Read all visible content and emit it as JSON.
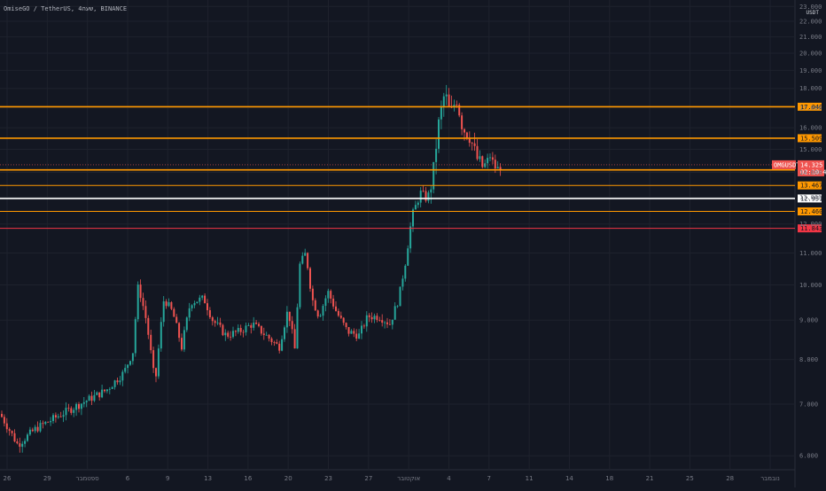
{
  "header": {
    "symbol_title": "OmiseGO / TetherUS, 4שעה, BINANCE",
    "unit": "USDT"
  },
  "colors": {
    "background": "#131722",
    "grid": "#1e222d",
    "up": "#26a69a",
    "down": "#ef5350",
    "orange": "#ff9800",
    "white": "#ffffff",
    "red_line": "#f23645",
    "axis_text": "#787b86"
  },
  "chart_data": {
    "type": "candlestick",
    "y_axis": {
      "scale": "log",
      "range": [
        5.8,
        23.2
      ],
      "ticks": [
        "23.000",
        "22.000",
        "21.000",
        "20.000",
        "19.000",
        "18.000",
        "17.000",
        "16.000",
        "15.000",
        "14.000",
        "13.000",
        "12.000",
        "11.000",
        "10.000",
        "9.000",
        "8.000",
        "7.000",
        "6.000"
      ]
    },
    "x_axis": {
      "ticks": [
        "26",
        "29",
        "ספטמבר",
        "6",
        "9",
        "13",
        "16",
        "20",
        "23",
        "27",
        "אוקטובר",
        "4",
        "7",
        "11",
        "14",
        "18",
        "21",
        "25",
        "28",
        "נובמבר"
      ]
    },
    "grid": true,
    "path_keypoints": [
      [
        0,
        6.8
      ],
      [
        20,
        6.2
      ],
      [
        40,
        6.5
      ],
      [
        60,
        6.7
      ],
      [
        80,
        6.9
      ],
      [
        100,
        7.1
      ],
      [
        120,
        7.3
      ],
      [
        140,
        7.7
      ],
      [
        150,
        8.2
      ],
      [
        156,
        10.0
      ],
      [
        165,
        9.0
      ],
      [
        175,
        7.4
      ],
      [
        185,
        9.6
      ],
      [
        195,
        9.2
      ],
      [
        205,
        8.3
      ],
      [
        215,
        9.5
      ],
      [
        230,
        9.6
      ],
      [
        240,
        9.0
      ],
      [
        255,
        8.6
      ],
      [
        270,
        8.7
      ],
      [
        285,
        8.9
      ],
      [
        300,
        8.6
      ],
      [
        315,
        8.3
      ],
      [
        325,
        9.3
      ],
      [
        333,
        8.2
      ],
      [
        338,
        10.6
      ],
      [
        345,
        11.0
      ],
      [
        352,
        9.6
      ],
      [
        360,
        9.1
      ],
      [
        370,
        9.8
      ],
      [
        380,
        9.2
      ],
      [
        392,
        8.7
      ],
      [
        405,
        8.6
      ],
      [
        415,
        9.1
      ],
      [
        428,
        9.1
      ],
      [
        440,
        8.9
      ],
      [
        450,
        9.6
      ],
      [
        458,
        10.8
      ],
      [
        465,
        12.3
      ],
      [
        475,
        13.2
      ],
      [
        482,
        12.9
      ],
      [
        488,
        13.7
      ],
      [
        495,
        16.2
      ],
      [
        502,
        17.8
      ],
      [
        508,
        16.6
      ],
      [
        515,
        17.5
      ],
      [
        522,
        16.0
      ],
      [
        530,
        15.6
      ],
      [
        538,
        14.6
      ],
      [
        545,
        14.2
      ],
      [
        553,
        14.7
      ],
      [
        560,
        14.1
      ],
      [
        567,
        14.33
      ]
    ],
    "price_levels": [
      {
        "value": 17.04,
        "label": "17.040",
        "color": "#ff9800",
        "width": 1.6
      },
      {
        "value": 15.509,
        "label": "15.509",
        "color": "#ff9800",
        "width": 1.6
      },
      {
        "value": 14.107,
        "label": "14.107",
        "color": "#ff9800",
        "width": 1.6
      },
      {
        "value": 13.467,
        "label": "13.467",
        "color": "#ff9800",
        "width": 1.0
      },
      {
        "value": 12.951,
        "label": "12.951",
        "color": "#ffffff",
        "width": 1.6
      },
      {
        "value": 12.46,
        "label": "12.460",
        "color": "#ff9800",
        "width": 1.0
      },
      {
        "value": 11.843,
        "label": "11.843",
        "color": "#f23645",
        "width": 1.0
      }
    ],
    "current_price": {
      "symbol": "OMGUSDT",
      "value": 14.325,
      "label": "14.325",
      "countdown": "02:10:47"
    }
  }
}
